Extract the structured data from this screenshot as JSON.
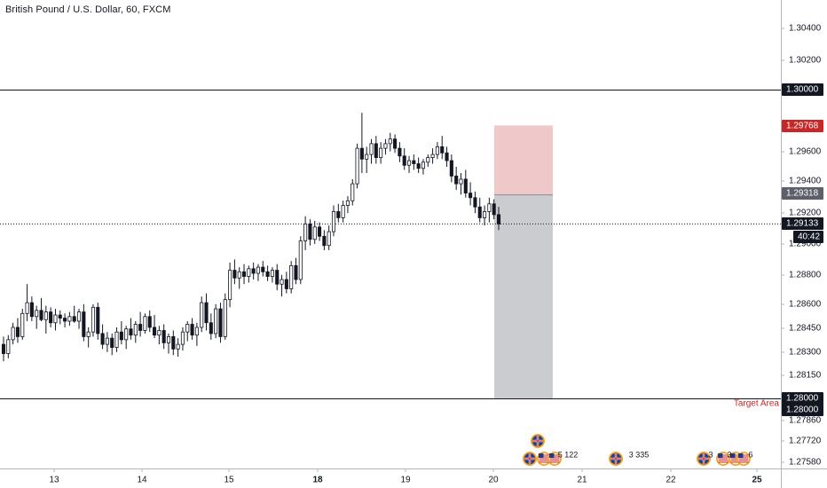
{
  "chart": {
    "symbol_title": "British Pound / U.S. Dollar, 60, FXCM",
    "target_label": "Target Area",
    "countdown": "40:42"
  },
  "colors": {
    "background": "#ffffff",
    "candle_up_body": "#ffffff",
    "candle_down_body": "#131722",
    "candle_outline": "#131722",
    "stop_zone": "#efc9c9",
    "target_zone": "#cbcccf",
    "level_line": "#131722",
    "stop_tag": "#c62828",
    "grid_text": "#131722",
    "axis_line": "#b2b5be"
  },
  "chart_data": {
    "type": "candlestick",
    "timeframe": "60",
    "y_ticks": [
      "1.30400",
      "1.30200",
      "1.29600",
      "1.29400",
      "1.29200",
      "1.29000",
      "1.28800",
      "1.28600",
      "1.28450",
      "1.28300",
      "1.28150",
      "1.27860",
      "1.27720",
      "1.27580"
    ],
    "x_ticks": [
      {
        "label": "13",
        "bold": false
      },
      {
        "label": "14",
        "bold": false
      },
      {
        "label": "15",
        "bold": false
      },
      {
        "label": "18",
        "bold": true
      },
      {
        "label": "19",
        "bold": false
      },
      {
        "label": "20",
        "bold": false
      },
      {
        "label": "21",
        "bold": false
      },
      {
        "label": "22",
        "bold": false
      },
      {
        "label": "25",
        "bold": true
      }
    ],
    "price_tags": [
      {
        "label": "1.30000",
        "style": "black"
      },
      {
        "label": "1.29768",
        "style": "red"
      },
      {
        "label": "1.29318",
        "style": "gray"
      },
      {
        "label": "1.29133",
        "style": "black"
      },
      {
        "label": "1.28000",
        "style": "black"
      },
      {
        "label": "1.28000",
        "style": "black"
      }
    ],
    "horizontal_levels": [
      1.3,
      1.28
    ],
    "last_price": 1.29133,
    "position": {
      "type": "short",
      "entry": 1.29318,
      "stop": 1.29768,
      "target": 1.28
    },
    "events": [
      {
        "flags": [
          "GB"
        ],
        "label": "",
        "slot": 0
      },
      {
        "flags": [
          "GB",
          "US",
          "US"
        ],
        "label": "5 122",
        "slot": 0
      },
      {
        "flags": [
          "GB"
        ],
        "label": "3 335",
        "slot": 1
      },
      {
        "flags": [
          "GB",
          "US"
        ],
        "label": "3",
        "slot": 2
      },
      {
        "flags": [
          "US"
        ],
        "label": "3",
        "slot": 2
      },
      {
        "flags": [
          "US"
        ],
        "label": "6",
        "slot": 2
      }
    ],
    "candles": [
      [
        1.2835,
        1.284,
        1.2824,
        1.2829
      ],
      [
        1.2829,
        1.2841,
        1.2826,
        1.2838
      ],
      [
        1.2838,
        1.2849,
        1.2835,
        1.2846
      ],
      [
        1.2846,
        1.2852,
        1.2836,
        1.284
      ],
      [
        1.284,
        1.2858,
        1.2838,
        1.2855
      ],
      [
        1.2855,
        1.2874,
        1.285,
        1.2862
      ],
      [
        1.2862,
        1.2866,
        1.285,
        1.2853
      ],
      [
        1.2853,
        1.286,
        1.2845,
        1.2857
      ],
      [
        1.2857,
        1.2865,
        1.285,
        1.2851
      ],
      [
        1.2851,
        1.286,
        1.2842,
        1.2856
      ],
      [
        1.2856,
        1.2859,
        1.2846,
        1.2849
      ],
      [
        1.2849,
        1.2858,
        1.2844,
        1.2854
      ],
      [
        1.2854,
        1.2857,
        1.2848,
        1.2852
      ],
      [
        1.2852,
        1.2855,
        1.2846,
        1.285
      ],
      [
        1.285,
        1.2856,
        1.2847,
        1.2853
      ],
      [
        1.2853,
        1.286,
        1.2849,
        1.285
      ],
      [
        1.285,
        1.2858,
        1.2845,
        1.2856
      ],
      [
        1.2856,
        1.2861,
        1.2837,
        1.284
      ],
      [
        1.284,
        1.2846,
        1.2833,
        1.2843
      ],
      [
        1.2843,
        1.2861,
        1.284,
        1.2859
      ],
      [
        1.2859,
        1.2862,
        1.2838,
        1.2842
      ],
      [
        1.2842,
        1.2848,
        1.2832,
        1.2835
      ],
      [
        1.2835,
        1.2843,
        1.283,
        1.2839
      ],
      [
        1.2839,
        1.2842,
        1.2828,
        1.2833
      ],
      [
        1.2833,
        1.2846,
        1.283,
        1.2843
      ],
      [
        1.2843,
        1.285,
        1.2835,
        1.2838
      ],
      [
        1.2838,
        1.2847,
        1.2832,
        1.2845
      ],
      [
        1.2845,
        1.2852,
        1.2838,
        1.2841
      ],
      [
        1.2841,
        1.285,
        1.2836,
        1.2848
      ],
      [
        1.2848,
        1.2856,
        1.284,
        1.2844
      ],
      [
        1.2844,
        1.2855,
        1.2842,
        1.2853
      ],
      [
        1.2853,
        1.2857,
        1.2843,
        1.2846
      ],
      [
        1.2846,
        1.2854,
        1.2839,
        1.2841
      ],
      [
        1.2841,
        1.2847,
        1.2835,
        1.2844
      ],
      [
        1.2844,
        1.2848,
        1.2832,
        1.2836
      ],
      [
        1.2836,
        1.2842,
        1.2829,
        1.284
      ],
      [
        1.284,
        1.2844,
        1.2828,
        1.2832
      ],
      [
        1.2832,
        1.2839,
        1.2827,
        1.2835
      ],
      [
        1.2835,
        1.2846,
        1.2831,
        1.2843
      ],
      [
        1.2843,
        1.285,
        1.2837,
        1.2848
      ],
      [
        1.2848,
        1.2852,
        1.2838,
        1.2841
      ],
      [
        1.2841,
        1.2849,
        1.2834,
        1.2846
      ],
      [
        1.2846,
        1.2866,
        1.2843,
        1.2862
      ],
      [
        1.2862,
        1.2868,
        1.2844,
        1.2849
      ],
      [
        1.2849,
        1.2855,
        1.2838,
        1.2842
      ],
      [
        1.2842,
        1.2861,
        1.2839,
        1.2858
      ],
      [
        1.2858,
        1.2862,
        1.2836,
        1.284
      ],
      [
        1.284,
        1.2868,
        1.2838,
        1.2864
      ],
      [
        1.2864,
        1.2888,
        1.2859,
        1.2883
      ],
      [
        1.2883,
        1.289,
        1.2874,
        1.2878
      ],
      [
        1.2878,
        1.2885,
        1.2871,
        1.2882
      ],
      [
        1.2882,
        1.2887,
        1.2874,
        1.2879
      ],
      [
        1.2879,
        1.2886,
        1.2875,
        1.2884
      ],
      [
        1.2884,
        1.2888,
        1.2877,
        1.2881
      ],
      [
        1.2881,
        1.2887,
        1.2876,
        1.2885
      ],
      [
        1.2885,
        1.2889,
        1.2879,
        1.2882
      ],
      [
        1.2882,
        1.2886,
        1.2876,
        1.2879
      ],
      [
        1.2879,
        1.2885,
        1.2875,
        1.2883
      ],
      [
        1.2883,
        1.2887,
        1.287,
        1.2874
      ],
      [
        1.2874,
        1.288,
        1.2866,
        1.2877
      ],
      [
        1.2877,
        1.2882,
        1.2868,
        1.2871
      ],
      [
        1.2871,
        1.2889,
        1.2868,
        1.2886
      ],
      [
        1.2886,
        1.2891,
        1.2874,
        1.2877
      ],
      [
        1.2877,
        1.2905,
        1.2874,
        1.2902
      ],
      [
        1.2902,
        1.2918,
        1.2896,
        1.2913
      ],
      [
        1.2913,
        1.2916,
        1.2899,
        1.2903
      ],
      [
        1.2903,
        1.2915,
        1.29,
        1.2911
      ],
      [
        1.2911,
        1.2914,
        1.2902,
        1.2905
      ],
      [
        1.2905,
        1.2909,
        1.2896,
        1.2899
      ],
      [
        1.2899,
        1.2912,
        1.2896,
        1.2908
      ],
      [
        1.2908,
        1.2925,
        1.2905,
        1.2921
      ],
      [
        1.2921,
        1.2926,
        1.2914,
        1.2917
      ],
      [
        1.2917,
        1.2928,
        1.2914,
        1.2925
      ],
      [
        1.2925,
        1.2931,
        1.292,
        1.2928
      ],
      [
        1.2928,
        1.2942,
        1.2925,
        1.2939
      ],
      [
        1.2939,
        1.2965,
        1.2936,
        1.2962
      ],
      [
        1.2962,
        1.2985,
        1.2946,
        1.2955
      ],
      [
        1.2955,
        1.2963,
        1.2946,
        1.2958
      ],
      [
        1.2958,
        1.2968,
        1.2952,
        1.2965
      ],
      [
        1.2965,
        1.297,
        1.2952,
        1.2956
      ],
      [
        1.2956,
        1.2966,
        1.2952,
        1.2962
      ],
      [
        1.2962,
        1.2968,
        1.2958,
        1.2965
      ],
      [
        1.2965,
        1.2972,
        1.296,
        1.2968
      ],
      [
        1.2968,
        1.2971,
        1.2959,
        1.2962
      ],
      [
        1.2962,
        1.2966,
        1.2953,
        1.2957
      ],
      [
        1.2957,
        1.2962,
        1.2948,
        1.2951
      ],
      [
        1.2951,
        1.2957,
        1.2946,
        1.2954
      ],
      [
        1.2954,
        1.2958,
        1.2948,
        1.2952
      ],
      [
        1.2952,
        1.2956,
        1.2946,
        1.2949
      ],
      [
        1.2949,
        1.2955,
        1.2945,
        1.2953
      ],
      [
        1.2953,
        1.2958,
        1.295,
        1.2956
      ],
      [
        1.2956,
        1.2962,
        1.2952,
        1.2958
      ],
      [
        1.2958,
        1.2966,
        1.2955,
        1.2963
      ],
      [
        1.2963,
        1.297,
        1.2955,
        1.2959
      ],
      [
        1.2959,
        1.2963,
        1.295,
        1.2954
      ],
      [
        1.2954,
        1.2958,
        1.294,
        1.2944
      ],
      [
        1.2944,
        1.295,
        1.2935,
        1.2939
      ],
      [
        1.2939,
        1.2946,
        1.2932,
        1.2942
      ],
      [
        1.2942,
        1.2948,
        1.293,
        1.2933
      ],
      [
        1.2933,
        1.294,
        1.2925,
        1.293
      ],
      [
        1.293,
        1.2934,
        1.292,
        1.2924
      ],
      [
        1.2924,
        1.293,
        1.2914,
        1.2917
      ],
      [
        1.2917,
        1.2925,
        1.2912,
        1.2921
      ],
      [
        1.2921,
        1.293,
        1.2914,
        1.2926
      ],
      [
        1.2926,
        1.2929,
        1.2916,
        1.2919
      ],
      [
        1.2919,
        1.2924,
        1.2909,
        1.2913
      ]
    ]
  }
}
